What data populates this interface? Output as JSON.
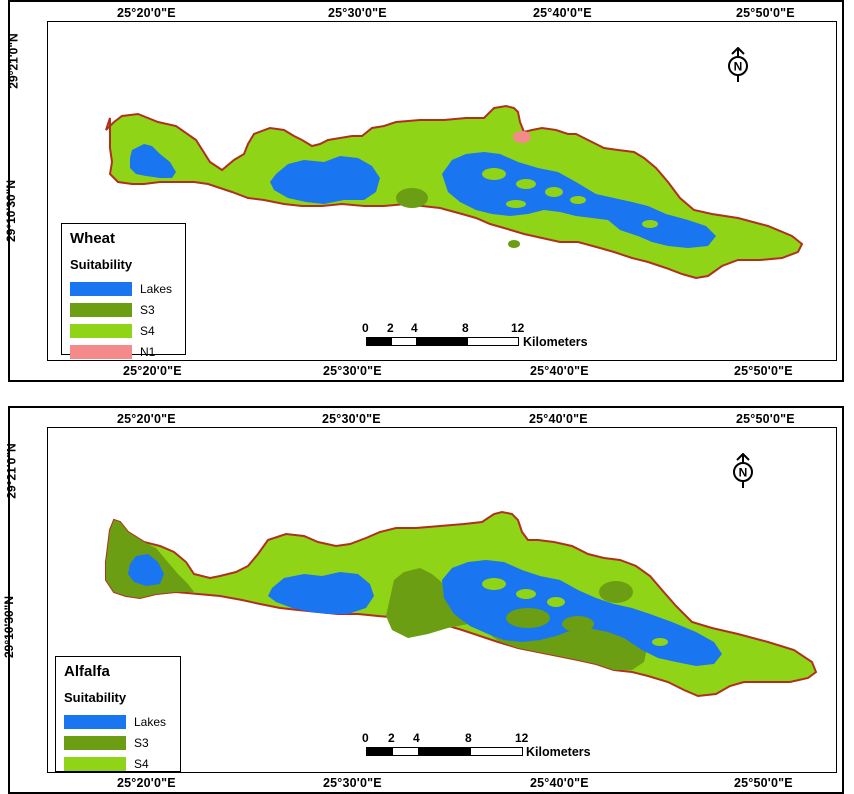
{
  "colors": {
    "lakes": "#1a75f0",
    "s3": "#6b9e12",
    "s4": "#8fd416",
    "n1": "#f48a8a",
    "outline": "#b03020"
  },
  "top_axis_labels": [
    "25°20'0\"E",
    "25°30'0\"E",
    "25°40'0\"E",
    "25°50'0\"E"
  ],
  "bottom_axis_labels": [
    "25°20'0\"E",
    "25°30'0\"E",
    "25°40'0\"E",
    "25°50'0\"E"
  ],
  "lat_labels": [
    "29°21'0\"N",
    "29°10'30\"N"
  ],
  "north_symbol": "N",
  "north_icon": "north-arrow-icon",
  "maps": [
    {
      "crop": "Wheat",
      "legend_subtitle": "Suitability",
      "legend_items": [
        {
          "label": "Lakes",
          "color": "#1a75f0"
        },
        {
          "label": "S3",
          "color": "#6b9e12"
        },
        {
          "label": "S4",
          "color": "#8fd416"
        },
        {
          "label": "N1",
          "color": "#f48a8a"
        }
      ],
      "scale_ticks": [
        "0",
        "2",
        "4",
        "8",
        "12"
      ],
      "scale_unit": "Kilometers"
    },
    {
      "crop": "Alfalfa",
      "legend_subtitle": "Suitability",
      "legend_items": [
        {
          "label": "Lakes",
          "color": "#1a75f0"
        },
        {
          "label": "S3",
          "color": "#6b9e12"
        },
        {
          "label": "S4",
          "color": "#8fd416"
        }
      ],
      "scale_ticks": [
        "0",
        "2",
        "4",
        "8",
        "12"
      ],
      "scale_unit": "Kilometers"
    }
  ]
}
